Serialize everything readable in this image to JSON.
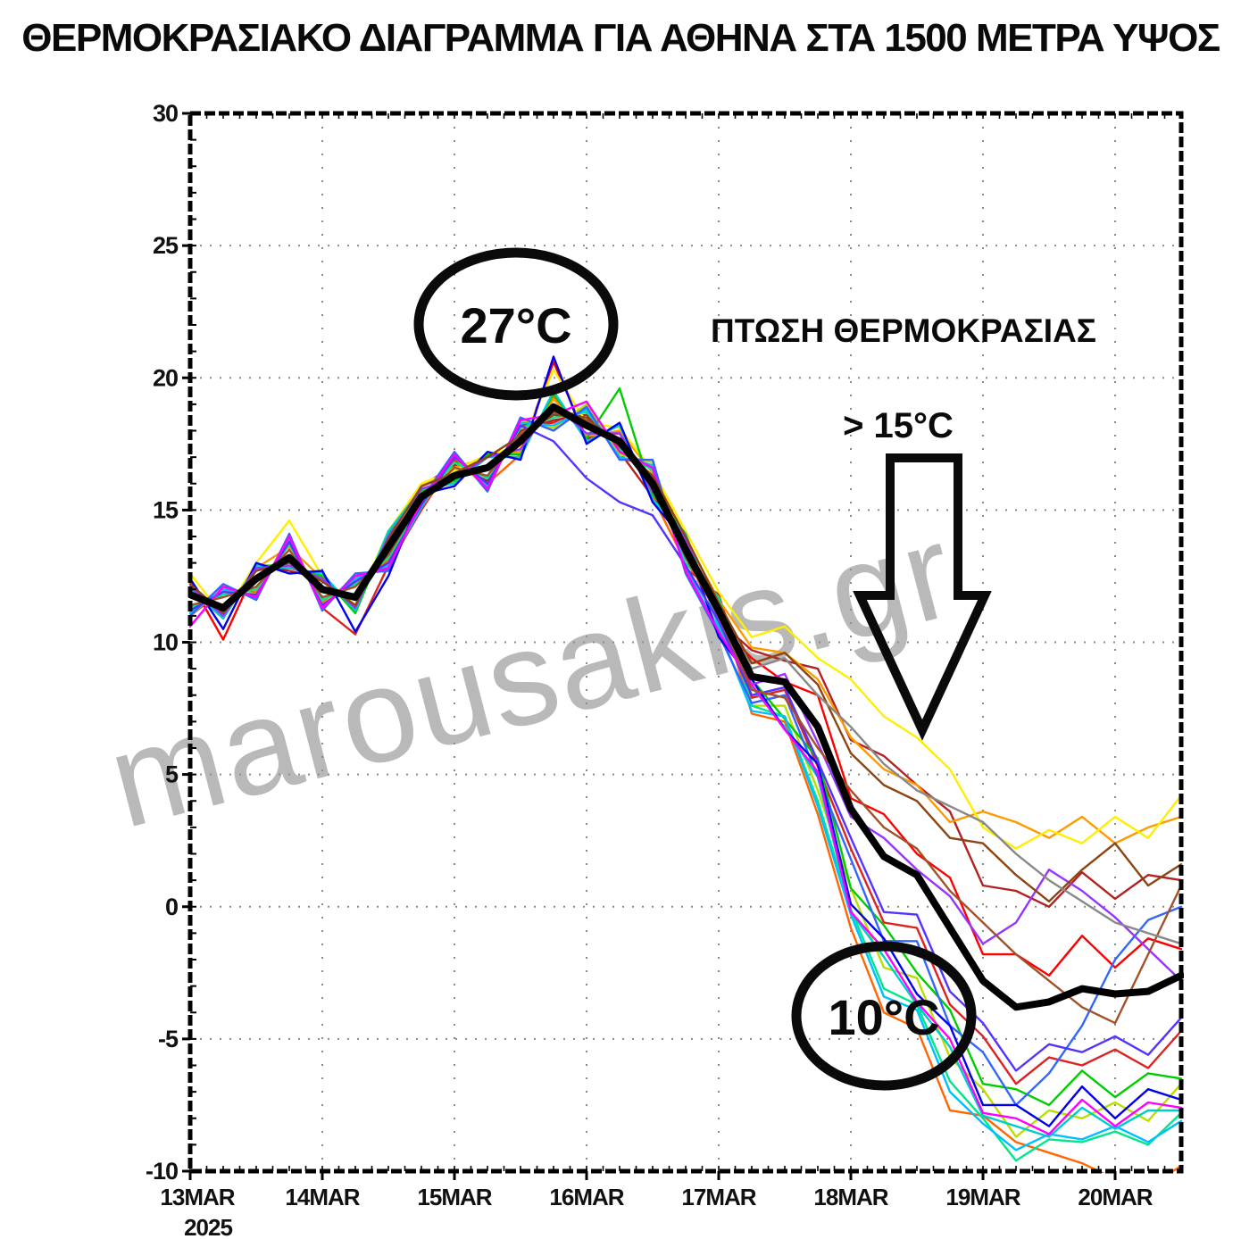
{
  "title": "ΘΕΡΜΟΚΡΑΣΙΑΚΟ ΔΙΑΓΡΑΜΜΑ ΓΙΑ ΑΘΗΝΑ ΣΤΑ 1500 ΜΕΤΡΑ ΥΨΟΣ",
  "watermark": "marousakis.gr",
  "annotations": {
    "peak_label": "27°C",
    "drop_title": "ΠΤΩΣΗ ΘΕΡΜΟΚΡΑΣΙΑΣ",
    "drop_amount": "> 15°C",
    "low_label": "10°C",
    "arrow_icon": "down-arrow"
  },
  "chart_data": {
    "type": "line",
    "title": "ΘΕΡΜΟΚΡΑΣΙΑΚΟ ΔΙΑΓΡΑΜΜΑ ΓΙΑ ΑΘΗΝΑ ΣΤΑ 1500 ΜΕΤΡΑ ΥΨΟΣ",
    "grid": "dotted",
    "legend": "none",
    "ylabel": "",
    "xlabel": "",
    "ylim": [
      -10,
      30
    ],
    "xlim_days": [
      0,
      7.5
    ],
    "x_step_days": 0.25,
    "y_axis": {
      "ticks": [
        30,
        25,
        20,
        15,
        10,
        5,
        0,
        -5,
        -10
      ],
      "unit": "°C"
    },
    "x_axis": {
      "tick_days": [
        0,
        1,
        2,
        3,
        4,
        5,
        6,
        7
      ],
      "tick_labels": [
        "13MAR",
        "14MAR",
        "15MAR",
        "16MAR",
        "17MAR",
        "18MAR",
        "19MAR",
        "20MAR"
      ],
      "year_label": "2025"
    },
    "mean_series": {
      "name": "ensemble-mean",
      "color": "#000000",
      "stroke_width": 8,
      "values": [
        11.8,
        11.3,
        12.4,
        13.2,
        12.0,
        11.7,
        13.6,
        15.5,
        16.3,
        16.6,
        17.6,
        18.9,
        18.2,
        17.6,
        16.0,
        13.5,
        11.2,
        8.7,
        8.5,
        6.8,
        3.7,
        1.9,
        1.2,
        -0.8,
        -2.8,
        -3.8,
        -3.6,
        -3.1,
        -3.3,
        -3.2,
        -2.6
      ]
    },
    "members": [
      {
        "color": "#ff0000",
        "values": [
          12.3,
          10.1,
          12.8,
          12.8,
          12.5,
          11.2,
          14.0,
          15.8,
          16.0,
          17.0,
          17.2,
          20.6,
          17.7,
          18.0,
          15.6,
          14.0,
          10.7,
          9.4,
          8.5,
          8.0,
          4.1,
          3.5,
          2.0,
          1.1,
          -1.8,
          -1.8,
          -2.6,
          -1.1,
          -2.3,
          -1.2,
          -1.6
        ]
      },
      {
        "color": "#dd2222",
        "values": [
          11.0,
          12.0,
          11.7,
          13.9,
          11.3,
          10.3,
          12.9,
          15.0,
          16.9,
          15.9,
          18.2,
          18.3,
          18.9,
          17.0,
          16.6,
          12.8,
          11.8,
          7.9,
          8.2,
          5.3,
          2.2,
          -0.6,
          -0.8,
          -3.7,
          -4.9,
          -6.7,
          -5.7,
          -6.0,
          -5.4,
          -6.1,
          -4.7
        ]
      },
      {
        "color": "#b22222",
        "values": [
          12.2,
          11.0,
          12.9,
          12.7,
          12.4,
          11.2,
          14.1,
          15.9,
          16.7,
          16.1,
          18.0,
          18.4,
          18.6,
          17.2,
          15.5,
          13.9,
          10.8,
          9.7,
          9.3,
          9.0,
          6.3,
          5.7,
          4.6,
          3.6,
          0.8,
          0.6,
          0.0,
          1.3,
          0.3,
          1.2,
          1.0
        ]
      },
      {
        "color": "#ff6600",
        "values": [
          11.2,
          11.9,
          11.9,
          13.7,
          11.5,
          12.2,
          13.1,
          15.1,
          16.8,
          16.0,
          17.1,
          19.3,
          17.8,
          17.9,
          15.5,
          13.0,
          11.6,
          7.3,
          7.0,
          3.5,
          -0.8,
          -4.0,
          -4.6,
          -7.7,
          -7.9,
          -8.9,
          -9.3,
          -9.7,
          -10.3,
          -10.6,
          -9.8
        ]
      },
      {
        "color": "#ff9900",
        "values": [
          12.2,
          10.9,
          12.8,
          13.6,
          12.4,
          11.3,
          14.0,
          15.9,
          16.6,
          17.0,
          17.2,
          19.2,
          17.8,
          18.0,
          16.4,
          13.9,
          11.6,
          9.8,
          9.6,
          8.6,
          6.4,
          5.2,
          4.6,
          3.2,
          3.6,
          3.2,
          2.6,
          3.4,
          2.4,
          3.0,
          3.4
        ]
      },
      {
        "color": "#ffee00",
        "values": [
          12.6,
          11.0,
          13.0,
          14.6,
          12.5,
          11.4,
          14.2,
          16.0,
          16.5,
          17.1,
          17.4,
          20.3,
          18.3,
          18.1,
          16.5,
          14.2,
          11.9,
          10.2,
          10.6,
          9.4,
          8.6,
          7.2,
          6.4,
          5.2,
          3.0,
          2.2,
          2.9,
          2.4,
          3.4,
          2.6,
          4.2
        ]
      },
      {
        "color": "#bbdd00",
        "values": [
          11.0,
          12.1,
          11.8,
          14.0,
          11.4,
          12.5,
          12.8,
          15.2,
          17.0,
          15.8,
          18.4,
          18.1,
          19.0,
          17.1,
          16.8,
          12.7,
          10.4,
          7.6,
          7.6,
          4.4,
          0.7,
          -2.3,
          -2.7,
          -5.7,
          -6.9,
          -8.7,
          -7.7,
          -8.0,
          -7.4,
          -8.1,
          -6.7
        ]
      },
      {
        "color": "#00cc00",
        "values": [
          12.1,
          10.9,
          12.9,
          12.9,
          12.5,
          11.1,
          14.1,
          15.7,
          16.1,
          17.1,
          17.1,
          19.4,
          17.7,
          19.6,
          15.6,
          14.1,
          10.6,
          8.6,
          7.1,
          5.6,
          0.7,
          -0.7,
          -2.5,
          -3.9,
          -6.7,
          -6.9,
          -7.5,
          -6.2,
          -7.2,
          -6.3,
          -6.5
        ]
      },
      {
        "color": "#00e68a",
        "values": [
          11.3,
          11.8,
          12.0,
          13.7,
          11.6,
          12.2,
          13.2,
          15.3,
          16.8,
          16.2,
          18.1,
          18.5,
          18.7,
          17.3,
          16.5,
          13.0,
          11.7,
          7.6,
          7.2,
          4.0,
          -0.1,
          -3.1,
          -3.7,
          -6.6,
          -8.0,
          -9.6,
          -8.8,
          -8.9,
          -8.5,
          -9.0,
          -7.8
        ]
      },
      {
        "color": "#00cccc",
        "values": [
          12.0,
          10.9,
          12.9,
          12.8,
          12.6,
          11.2,
          14.2,
          15.8,
          16.0,
          17.0,
          17.0,
          19.5,
          17.6,
          18.2,
          15.4,
          14.1,
          10.6,
          8.3,
          6.8,
          4.9,
          -0.2,
          -1.9,
          -3.7,
          -5.3,
          -7.9,
          -8.3,
          -8.7,
          -7.6,
          -8.4,
          -7.7,
          -7.7
        ]
      },
      {
        "color": "#00bfff",
        "values": [
          11.1,
          12.0,
          11.7,
          13.9,
          11.3,
          12.4,
          12.9,
          15.1,
          17.1,
          15.9,
          18.3,
          18.2,
          18.8,
          17.0,
          16.7,
          12.8,
          10.5,
          7.4,
          7.2,
          3.8,
          -0.3,
          -3.4,
          -3.9,
          -7.0,
          -8.2,
          -9.2,
          -8.6,
          -8.8,
          -8.3,
          -8.9,
          -8.1
        ]
      },
      {
        "color": "#3366ff",
        "values": [
          11.0,
          12.2,
          11.6,
          14.1,
          11.2,
          12.6,
          12.7,
          15.4,
          17.2,
          15.7,
          18.5,
          18.0,
          18.9,
          16.9,
          16.9,
          12.6,
          10.3,
          7.7,
          8.0,
          4.9,
          1.8,
          -1.3,
          -1.3,
          -4.5,
          -5.5,
          -7.5,
          -6.3,
          -4.5,
          -2.0,
          -0.5,
          0.0
        ]
      },
      {
        "color": "#0000ee",
        "values": [
          12.4,
          10.5,
          13.0,
          12.6,
          12.7,
          10.4,
          12.5,
          15.6,
          15.9,
          17.2,
          16.9,
          20.8,
          17.5,
          18.3,
          15.3,
          13.8,
          10.2,
          8.6,
          6.7,
          5.4,
          0.1,
          -1.2,
          -3.3,
          -4.5,
          -7.5,
          -7.5,
          -8.3,
          -6.8,
          -8.0,
          -6.9,
          -7.3
        ]
      },
      {
        "color": "#5533ff",
        "values": [
          11.2,
          11.9,
          11.8,
          13.8,
          11.4,
          12.3,
          13.0,
          15.2,
          17.0,
          16.0,
          18.2,
          17.6,
          16.2,
          15.3,
          14.8,
          12.9,
          10.8,
          8.0,
          8.3,
          5.5,
          2.6,
          -0.2,
          -0.3,
          -3.2,
          -4.4,
          -6.2,
          -5.2,
          -5.5,
          -4.9,
          -5.6,
          -4.2
        ]
      },
      {
        "color": "#9933ff",
        "values": [
          12.1,
          11.0,
          12.8,
          12.9,
          12.4,
          11.3,
          14.0,
          15.8,
          16.2,
          17.0,
          17.3,
          19.0,
          17.9,
          17.9,
          15.7,
          13.9,
          10.9,
          8.4,
          8.8,
          6.2,
          3.4,
          2.6,
          1.4,
          0.4,
          -1.4,
          -0.6,
          1.4,
          0.6,
          -0.4,
          -1.6,
          -2.8
        ]
      },
      {
        "color": "#ff00ff",
        "values": [
          10.6,
          12.1,
          11.7,
          14.0,
          11.3,
          12.5,
          12.8,
          15.3,
          17.1,
          15.8,
          18.4,
          18.6,
          19.1,
          17.2,
          16.6,
          12.7,
          10.4,
          8.4,
          6.7,
          5.1,
          -0.2,
          -1.6,
          -3.6,
          -5.0,
          -7.8,
          -8.0,
          -8.6,
          -7.3,
          -8.3,
          -7.4,
          -7.6
        ]
      },
      {
        "color": "#8b4513",
        "values": [
          12.2,
          11.1,
          12.7,
          13.0,
          12.3,
          11.4,
          13.9,
          15.9,
          16.4,
          17.0,
          17.8,
          18.6,
          18.5,
          17.4,
          16.3,
          14.0,
          11.5,
          9.2,
          9.6,
          8.4,
          5.8,
          4.6,
          4.0,
          2.6,
          2.4,
          1.2,
          0.2,
          1.4,
          2.4,
          0.8,
          1.6
        ]
      },
      {
        "color": "#a0522d",
        "values": [
          11.4,
          11.7,
          12.1,
          13.5,
          11.7,
          12.1,
          13.3,
          15.4,
          16.6,
          16.3,
          17.9,
          18.7,
          18.4,
          17.5,
          16.2,
          13.2,
          11.0,
          8.2,
          7.9,
          6.0,
          4.4,
          3.0,
          2.2,
          0.6,
          -0.6,
          -1.8,
          -2.8,
          -3.8,
          -4.4,
          -1.8,
          0.8
        ]
      },
      {
        "color": "#888888",
        "values": [
          11.9,
          11.2,
          12.5,
          13.3,
          12.1,
          11.6,
          13.7,
          15.6,
          16.4,
          16.7,
          17.7,
          18.8,
          18.3,
          17.7,
          16.1,
          13.6,
          11.3,
          9.0,
          9.4,
          8.0,
          6.8,
          5.4,
          4.4,
          3.8,
          3.2,
          2.0,
          1.0,
          0.2,
          -0.6,
          -1.0,
          -1.4
        ]
      }
    ]
  }
}
